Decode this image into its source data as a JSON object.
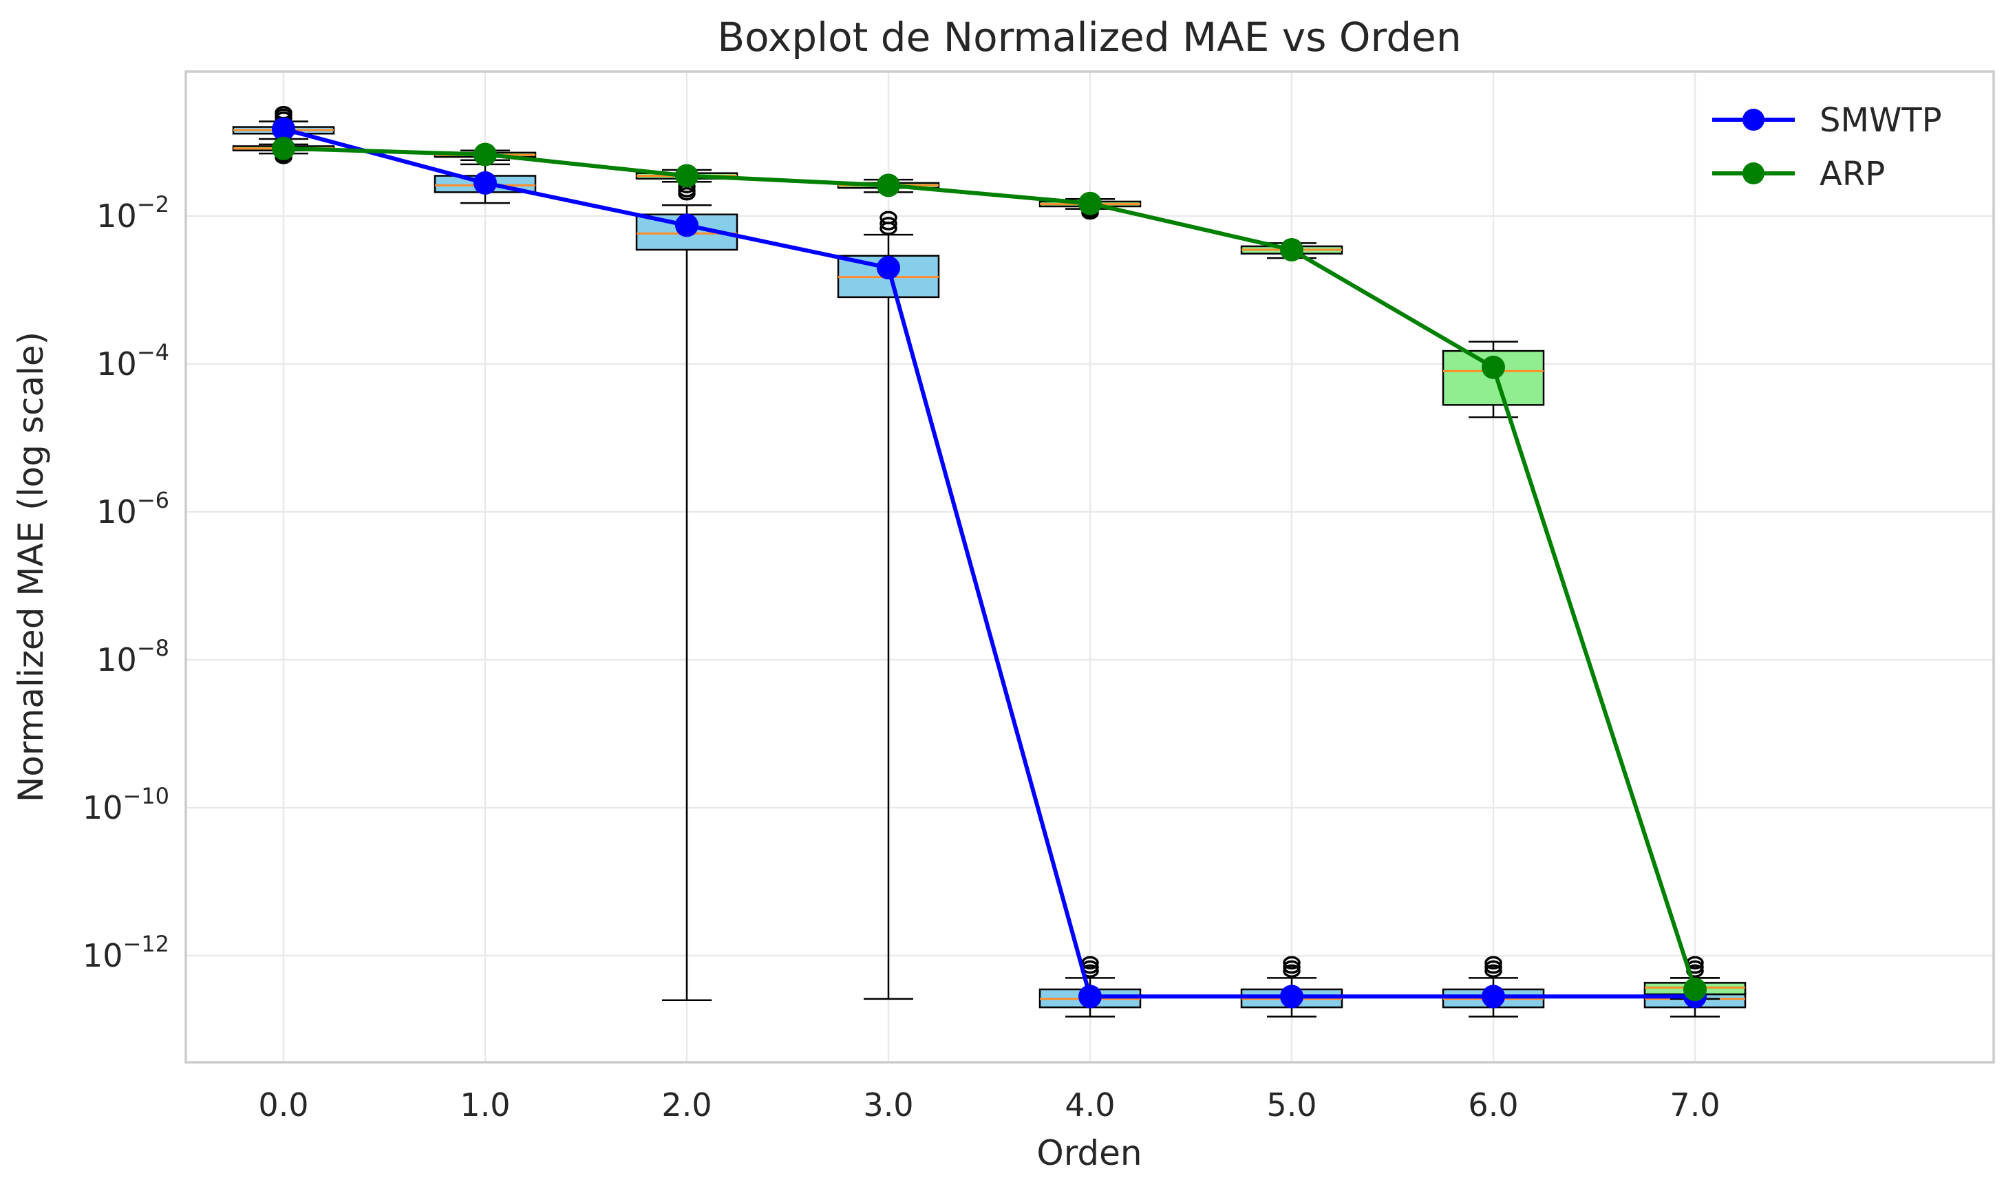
{
  "chart_data": {
    "type": "box",
    "title": "Boxplot de Normalized MAE vs Orden",
    "xlabel": "Orden",
    "ylabel": "Normalized MAE (log scale)",
    "yscale": "log",
    "ylim": [
      3e-14,
      1.2
    ],
    "grid": true,
    "legend_position": "top-right",
    "categories": [
      "0.0",
      "1.0",
      "2.0",
      "3.0",
      "4.0",
      "5.0",
      "6.0",
      "7.0"
    ],
    "yticks": [
      {
        "base": "10",
        "exp": "−2",
        "value": 0.01
      },
      {
        "base": "10",
        "exp": "−4",
        "value": 0.0001
      },
      {
        "base": "10",
        "exp": "−6",
        "value": 1e-06
      },
      {
        "base": "10",
        "exp": "−8",
        "value": 1e-08
      },
      {
        "base": "10",
        "exp": "−10",
        "value": 1e-10
      },
      {
        "base": "10",
        "exp": "−12",
        "value": 1e-12
      }
    ],
    "box_series": [
      {
        "color": "#87ceeb",
        "boxes": [
          {
            "x": 0,
            "whislo": 0.11,
            "q1": 0.13,
            "med": 0.145,
            "q3": 0.16,
            "whishi": 0.19,
            "fliers": [
              0.21,
              0.23,
              0.25
            ]
          },
          {
            "x": 1,
            "whislo": 0.015,
            "q1": 0.021,
            "med": 0.026,
            "q3": 0.035,
            "whishi": 0.05,
            "fliers": []
          },
          {
            "x": 2,
            "whislo": 2.5e-13,
            "q1": 0.0035,
            "med": 0.0058,
            "q3": 0.0105,
            "whishi": 0.014,
            "fliers": []
          },
          {
            "x": 3,
            "whislo": 2.6e-13,
            "q1": 0.0008,
            "med": 0.0015,
            "q3": 0.0029,
            "whishi": 0.0056,
            "fliers": [
              0.0068,
              0.0079,
              0.0095
            ]
          },
          {
            "x": 4,
            "whislo": 1.5e-13,
            "q1": 2e-13,
            "med": 2.6e-13,
            "q3": 3.5e-13,
            "whishi": 5e-13,
            "fliers": [
              6.2e-13,
              7e-13,
              8e-13
            ]
          },
          {
            "x": 5,
            "whislo": 1.5e-13,
            "q1": 2e-13,
            "med": 2.6e-13,
            "q3": 3.5e-13,
            "whishi": 5e-13,
            "fliers": [
              6.2e-13,
              7e-13,
              8e-13
            ]
          },
          {
            "x": 6,
            "whislo": 1.5e-13,
            "q1": 2e-13,
            "med": 2.6e-13,
            "q3": 3.5e-13,
            "whishi": 5e-13,
            "fliers": [
              6.2e-13,
              7e-13,
              8e-13
            ]
          },
          {
            "x": 7,
            "whislo": 1.5e-13,
            "q1": 2e-13,
            "med": 2.6e-13,
            "q3": 3.5e-13,
            "whishi": 5e-13,
            "fliers": [
              6.2e-13,
              7e-13,
              8e-13
            ]
          }
        ]
      },
      {
        "color": "#90ee90",
        "boxes": [
          {
            "x": 0,
            "whislo": 0.07,
            "q1": 0.077,
            "med": 0.082,
            "q3": 0.088,
            "whishi": 0.093,
            "fliers": [
              0.062,
              0.066
            ]
          },
          {
            "x": 1,
            "whislo": 0.057,
            "q1": 0.063,
            "med": 0.067,
            "q3": 0.072,
            "whishi": 0.077,
            "fliers": []
          },
          {
            "x": 2,
            "whislo": 0.029,
            "q1": 0.032,
            "med": 0.035,
            "q3": 0.038,
            "whishi": 0.042,
            "fliers": [
              0.02,
              0.022,
              0.025
            ]
          },
          {
            "x": 3,
            "whislo": 0.021,
            "q1": 0.024,
            "med": 0.026,
            "q3": 0.028,
            "whishi": 0.031,
            "fliers": []
          },
          {
            "x": 4,
            "whislo": 0.0125,
            "q1": 0.0135,
            "med": 0.0145,
            "q3": 0.0157,
            "whishi": 0.017,
            "fliers": [
              0.011,
              0.0118
            ]
          },
          {
            "x": 5,
            "whislo": 0.0027,
            "q1": 0.0031,
            "med": 0.0035,
            "q3": 0.0039,
            "whishi": 0.0043,
            "fliers": []
          },
          {
            "x": 6,
            "whislo": 1.9e-05,
            "q1": 2.8e-05,
            "med": 8e-05,
            "q3": 0.00015,
            "whishi": 0.0002,
            "fliers": []
          },
          {
            "x": 7,
            "whislo": 2.6e-13,
            "q1": 3e-13,
            "med": 3.7e-13,
            "q3": 4.3e-13,
            "whishi": 5e-13,
            "fliers": []
          }
        ]
      }
    ],
    "series": [
      {
        "name": "SMWTP",
        "color": "#0000ff",
        "x": [
          0,
          1,
          2,
          3,
          4,
          5,
          6,
          7
        ],
        "values": [
          0.15,
          0.028,
          0.0075,
          0.002,
          2.8e-13,
          2.8e-13,
          2.8e-13,
          2.8e-13
        ]
      },
      {
        "name": "ARP",
        "color": "#008000",
        "x": [
          0,
          1,
          2,
          3,
          4,
          5,
          6,
          7
        ],
        "values": [
          0.082,
          0.068,
          0.035,
          0.026,
          0.0148,
          0.0035,
          9e-05,
          3.5e-13
        ]
      }
    ]
  }
}
